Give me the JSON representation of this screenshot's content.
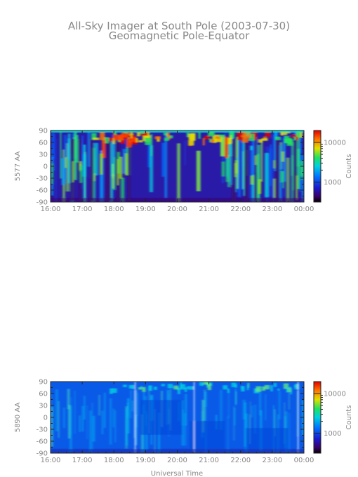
{
  "title": "All-Sky Imager at South Pole (2003-07-30)",
  "subtitle": "Geomagnetic Pole-Equator",
  "colorbar_label": "Counts",
  "chart_data": [
    {
      "type": "heatmap",
      "ylabel": "5577 AA",
      "xlabel": "",
      "x_ticks": [
        "16:00",
        "17:00",
        "18:00",
        "19:00",
        "20:00",
        "21:00",
        "22:00",
        "23:00",
        "00:00"
      ],
      "y_ticks": [
        "90",
        "60",
        "30",
        "0",
        "-30",
        "-60",
        "-90"
      ],
      "ylim": [
        -90,
        90
      ],
      "x_range_hours": [
        16,
        24
      ],
      "colorbar": {
        "scale": "log",
        "ticks": [
          "10000",
          "1000"
        ],
        "label": "Counts"
      }
    },
    {
      "type": "heatmap",
      "ylabel": "5890 AA",
      "xlabel": "Universal Time",
      "x_ticks": [
        "16:00",
        "17:00",
        "18:00",
        "19:00",
        "20:00",
        "21:00",
        "22:00",
        "23:00",
        "00:00"
      ],
      "y_ticks": [
        "90",
        "60",
        "30",
        "0",
        "-30",
        "-60",
        "-90"
      ],
      "ylim": [
        -90,
        90
      ],
      "x_range_hours": [
        16,
        24
      ],
      "colorbar": {
        "scale": "log",
        "ticks": [
          "10000",
          "1000"
        ],
        "label": "Counts"
      }
    }
  ]
}
